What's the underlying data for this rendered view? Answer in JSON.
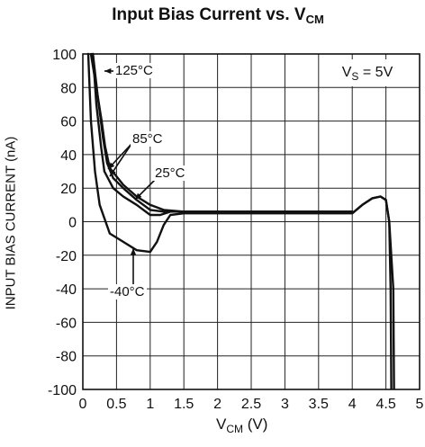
{
  "chart_data": {
    "type": "line",
    "title": {
      "main": "Input Bias Current vs. V",
      "sub": "CM"
    },
    "xlabel": {
      "main": "V",
      "sub": "CM",
      "unit": " (V)"
    },
    "ylabel": "INPUT BIAS CURRENT (nA)",
    "xlim": [
      0,
      5
    ],
    "ylim": [
      -100,
      100
    ],
    "xticks": [
      "0",
      "0.5",
      "1",
      "1.5",
      "2",
      "2.5",
      "3",
      "3.5",
      "4",
      "4.5",
      "5"
    ],
    "yticks": [
      "100",
      "80",
      "60",
      "40",
      "20",
      "0",
      "-20",
      "-40",
      "-60",
      "-80",
      "-100"
    ],
    "grid": true,
    "condition": {
      "main": "V",
      "sub": "S",
      "rest": " = 5V"
    },
    "series": [
      {
        "name": "125°C",
        "points": [
          [
            0.12,
            100
          ],
          [
            0.2,
            80
          ],
          [
            0.28,
            60
          ],
          [
            0.33,
            45
          ],
          [
            0.4,
            32
          ],
          [
            0.6,
            22
          ],
          [
            0.8,
            15
          ],
          [
            1.0,
            10
          ],
          [
            1.2,
            7
          ],
          [
            1.5,
            6
          ],
          [
            3.5,
            6
          ],
          [
            4.0,
            6
          ]
        ]
      },
      {
        "name": "85°C",
        "points": [
          [
            0.15,
            100
          ],
          [
            0.22,
            75
          ],
          [
            0.3,
            50
          ],
          [
            0.36,
            35
          ],
          [
            0.45,
            26
          ],
          [
            0.6,
            20
          ],
          [
            0.8,
            13
          ],
          [
            1.0,
            7
          ],
          [
            1.2,
            6
          ],
          [
            1.5,
            6
          ],
          [
            4.0,
            6
          ]
        ]
      },
      {
        "name": "25°C",
        "points": [
          [
            0.15,
            100
          ],
          [
            0.2,
            70
          ],
          [
            0.27,
            45
          ],
          [
            0.32,
            30
          ],
          [
            0.45,
            20
          ],
          [
            0.6,
            15
          ],
          [
            0.8,
            10
          ],
          [
            1.0,
            4
          ],
          [
            1.15,
            4
          ],
          [
            1.3,
            6
          ],
          [
            1.5,
            6
          ],
          [
            4.0,
            6
          ]
        ]
      },
      {
        "name": "-40°C",
        "points": [
          [
            0.08,
            100
          ],
          [
            0.12,
            60
          ],
          [
            0.18,
            30
          ],
          [
            0.25,
            10
          ],
          [
            0.4,
            -7
          ],
          [
            0.6,
            -12
          ],
          [
            0.8,
            -17
          ],
          [
            1.0,
            -18
          ],
          [
            1.1,
            -12
          ],
          [
            1.2,
            -2
          ],
          [
            1.3,
            4
          ],
          [
            1.5,
            5
          ],
          [
            4.0,
            5
          ]
        ]
      }
    ],
    "shared_tail": [
      [
        4.0,
        5
      ],
      [
        4.15,
        10
      ],
      [
        4.3,
        14
      ],
      [
        4.42,
        15
      ],
      [
        4.5,
        13
      ],
      [
        4.55,
        0
      ],
      [
        4.57,
        -40
      ],
      [
        4.58,
        -100
      ]
    ],
    "annotations": [
      "125°C",
      "85°C",
      "25°C",
      "-40°C"
    ]
  }
}
